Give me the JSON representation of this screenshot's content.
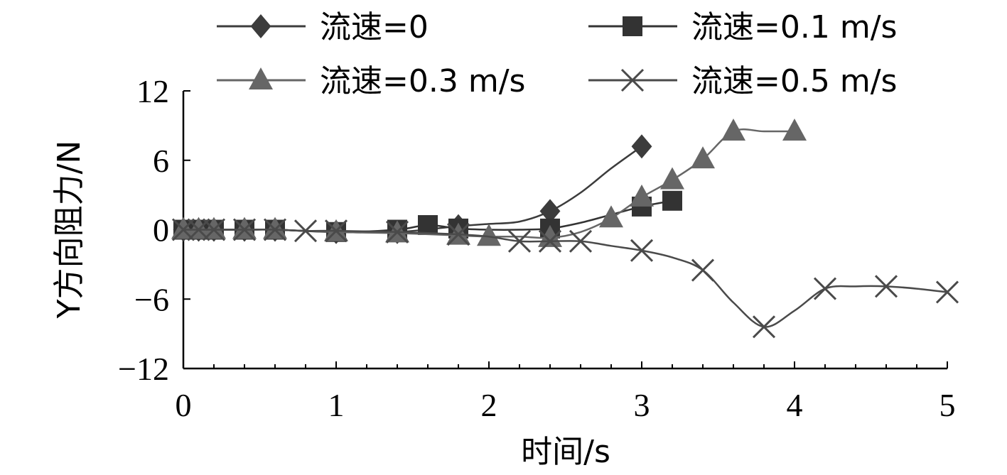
{
  "chart_data": {
    "type": "line",
    "title": "",
    "xlabel": "时间/s",
    "ylabel": "Y方向阻力/N",
    "xlim": [
      0,
      5
    ],
    "ylim": [
      -12,
      12
    ],
    "xticks": [
      "0",
      "1",
      "2",
      "3",
      "4",
      "5"
    ],
    "yticks": [
      "12",
      "6",
      "0",
      "−6",
      "−12"
    ],
    "grid": false,
    "legend_position": "top",
    "series": [
      {
        "name": "流速=0",
        "marker": "diamond",
        "color": "#3c3c3c",
        "x": [
          0,
          0.1,
          0.2,
          0.4,
          0.6,
          1.0,
          1.4,
          1.8,
          2.0,
          2.2,
          2.4,
          2.6,
          2.8,
          3.0
        ],
        "y": [
          0,
          0,
          0,
          0,
          0,
          -0.2,
          -0.2,
          0.3,
          0.5,
          0.7,
          1.6,
          3.2,
          5.3,
          7.2
        ],
        "markers_at": [
          0,
          0.1,
          0.2,
          0.4,
          0.6,
          1.0,
          1.4,
          1.8,
          2.4,
          3.0
        ]
      },
      {
        "name": "流速=0.1 m/s",
        "marker": "square",
        "color": "#333333",
        "x": [
          0,
          0.1,
          0.2,
          0.4,
          0.6,
          1.0,
          1.4,
          1.6,
          1.8,
          2.0,
          2.2,
          2.4,
          2.6,
          2.8,
          3.0,
          3.2
        ],
        "y": [
          0,
          0,
          0,
          0,
          0,
          -0.2,
          0,
          0.4,
          0.1,
          0,
          0,
          0.1,
          0.6,
          1.3,
          2.0,
          2.5
        ],
        "markers_at": [
          0,
          0.1,
          0.2,
          0.4,
          0.6,
          1.0,
          1.4,
          1.6,
          1.8,
          2.4,
          3.0,
          3.2
        ]
      },
      {
        "name": "流速=0.3 m/s",
        "marker": "triangle",
        "color": "#666666",
        "x": [
          0,
          0.1,
          0.2,
          0.4,
          0.6,
          1.0,
          1.4,
          1.8,
          2.0,
          2.2,
          2.4,
          2.6,
          2.8,
          3.0,
          3.2,
          3.4,
          3.6,
          3.8,
          4.0
        ],
        "y": [
          0,
          0,
          0,
          0,
          0,
          -0.2,
          -0.3,
          -0.5,
          -0.6,
          -0.6,
          -0.7,
          -0.2,
          1.0,
          2.8,
          4.3,
          6.1,
          8.5,
          8.5,
          8.5
        ],
        "markers_at": [
          0,
          0.1,
          0.2,
          0.4,
          0.6,
          1.0,
          1.4,
          1.8,
          2.0,
          2.4,
          2.8,
          3.0,
          3.2,
          3.4,
          3.6,
          4.0
        ]
      },
      {
        "name": "流速=0.5 m/s",
        "marker": "x",
        "color": "#4a4a4a",
        "x": [
          0,
          0.1,
          0.2,
          0.4,
          0.6,
          0.8,
          1.0,
          1.4,
          1.8,
          2.0,
          2.2,
          2.4,
          2.6,
          2.8,
          3.0,
          3.2,
          3.4,
          3.6,
          3.8,
          4.0,
          4.2,
          4.4,
          4.6,
          4.8,
          5.0
        ],
        "y": [
          0,
          0,
          0,
          0,
          0,
          -0.1,
          -0.1,
          -0.2,
          -0.4,
          -0.6,
          -1.0,
          -1.0,
          -1.0,
          -1.4,
          -1.8,
          -2.4,
          -3.5,
          -6.3,
          -8.4,
          -7.0,
          -5.1,
          -4.9,
          -4.9,
          -5.1,
          -5.4
        ],
        "markers_at": [
          0,
          0.1,
          0.2,
          0.4,
          0.6,
          0.8,
          1.0,
          1.4,
          1.8,
          2.2,
          2.4,
          2.6,
          3.0,
          3.4,
          3.8,
          4.2,
          4.6,
          5.0
        ]
      }
    ]
  }
}
